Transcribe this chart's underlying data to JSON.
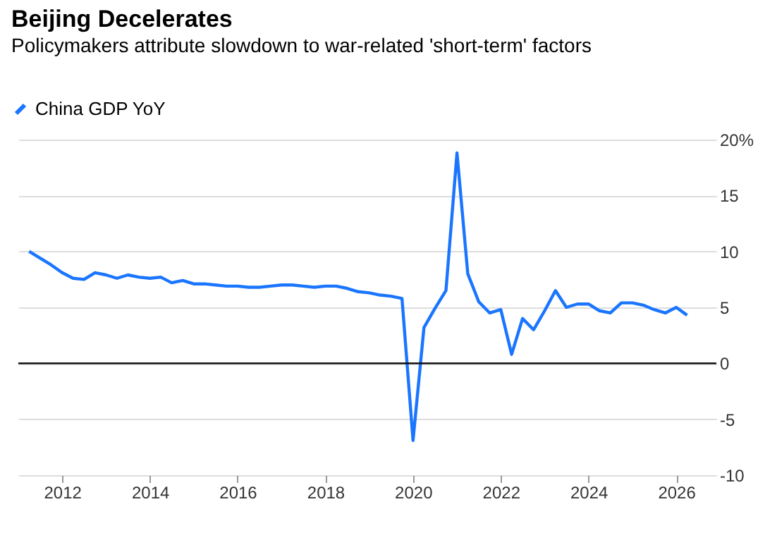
{
  "chart_data": {
    "type": "line",
    "title": "Beijing Decelerates",
    "subtitle": "Policymakers attribute slowdown to war-related 'short-term' factors",
    "x": [
      "2011-04",
      "2011-07",
      "2011-10",
      "2012-01",
      "2012-04",
      "2012-07",
      "2012-10",
      "2013-01",
      "2013-04",
      "2013-07",
      "2013-10",
      "2014-01",
      "2014-04",
      "2014-07",
      "2014-10",
      "2015-01",
      "2015-04",
      "2015-07",
      "2015-10",
      "2016-01",
      "2016-04",
      "2016-07",
      "2016-10",
      "2017-01",
      "2017-04",
      "2017-07",
      "2017-10",
      "2018-01",
      "2018-04",
      "2018-07",
      "2018-10",
      "2019-01",
      "2019-04",
      "2019-07",
      "2019-10",
      "2020-01",
      "2020-04",
      "2020-07",
      "2020-10",
      "2021-01",
      "2021-04",
      "2021-07",
      "2021-10",
      "2022-01",
      "2022-04",
      "2022-07",
      "2022-10",
      "2023-01",
      "2023-04",
      "2023-07",
      "2023-10",
      "2024-01",
      "2024-04",
      "2024-07",
      "2024-10",
      "2025-01",
      "2025-04",
      "2025-07",
      "2025-10",
      "2026-01",
      "2026-04"
    ],
    "series": [
      {
        "name": "China GDP YoY",
        "color": "#1a75ff",
        "values": [
          10.0,
          9.4,
          8.8,
          8.1,
          7.6,
          7.5,
          8.1,
          7.9,
          7.6,
          7.9,
          7.7,
          7.6,
          7.7,
          7.2,
          7.4,
          7.1,
          7.1,
          7.0,
          6.9,
          6.9,
          6.8,
          6.8,
          6.9,
          7.0,
          7.0,
          6.9,
          6.8,
          6.9,
          6.9,
          6.7,
          6.4,
          6.3,
          6.1,
          6.0,
          5.8,
          -6.9,
          3.2,
          4.9,
          6.5,
          18.8,
          8.0,
          5.5,
          4.5,
          4.8,
          0.8,
          4.0,
          3.0,
          4.7,
          6.5,
          5.0,
          5.3,
          5.3,
          4.7,
          4.5,
          5.4,
          5.4,
          5.2,
          4.8,
          4.5,
          5.0,
          4.3
        ]
      }
    ],
    "xlim": [
      "2011-01",
      "2026-12"
    ],
    "xticks": [
      "2012",
      "2014",
      "2016",
      "2018",
      "2020",
      "2022",
      "2024",
      "2026"
    ],
    "ylim": [
      -10,
      20
    ],
    "yticks": [
      {
        "value": 20,
        "label": "20%"
      },
      15,
      10,
      5,
      0,
      -5,
      -10
    ],
    "ref_lines": [
      {
        "axis": "y",
        "value": 0,
        "color": "#000000"
      }
    ],
    "grid": "y",
    "legend": "top left",
    "line_style": "solid",
    "marker": "none"
  }
}
